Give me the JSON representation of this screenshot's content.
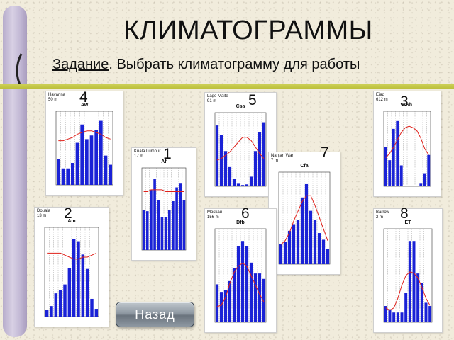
{
  "page": {
    "title": "КЛИМАТОГРАММЫ",
    "task_label": "Задание",
    "task_text": ". Выбрать климатограмму  для работы"
  },
  "back_button": {
    "label": "Назад"
  },
  "charts": [
    {
      "number": "4",
      "station": "Havanna",
      "elevation": "50 m",
      "climate_code": "Aw",
      "temp": [
        22,
        22,
        23,
        24,
        26,
        27,
        28,
        28,
        27,
        26,
        24,
        23
      ],
      "precip": [
        70,
        45,
        45,
        60,
        115,
        165,
        125,
        135,
        150,
        175,
        80,
        55
      ]
    },
    {
      "number": "5",
      "station": "Lago Maite",
      "elevation": "91 m",
      "climate_code": "Csa",
      "temp": [
        11,
        12,
        14,
        16,
        19,
        22,
        25,
        25,
        23,
        19,
        15,
        12
      ],
      "precip": [
        95,
        80,
        55,
        30,
        12,
        4,
        2,
        3,
        15,
        55,
        85,
        100
      ]
    },
    {
      "number": "3",
      "station": "Eiad",
      "elevation": "612 m",
      "climate_code": "BSh",
      "temp": [
        14,
        17,
        21,
        26,
        31,
        34,
        35,
        34,
        32,
        27,
        20,
        16
      ],
      "precip": [
        15,
        10,
        22,
        25,
        8,
        0,
        0,
        0,
        0,
        1,
        5,
        12
      ]
    },
    {
      "number": "1",
      "station": "Kuala Lumpur",
      "elevation": "17 m",
      "climate_code": "Af",
      "temp": [
        27,
        27,
        28,
        28,
        28,
        28,
        27,
        27,
        27,
        27,
        27,
        27
      ],
      "precip": [
        160,
        155,
        240,
        285,
        200,
        130,
        130,
        160,
        195,
        250,
        265,
        200
      ]
    },
    {
      "number": "7",
      "station": "Nanjan War",
      "elevation": "7 m",
      "climate_code": "Cfa",
      "temp": [
        3,
        5,
        9,
        15,
        20,
        25,
        28,
        28,
        23,
        17,
        11,
        5
      ],
      "precip": [
        45,
        50,
        75,
        90,
        100,
        150,
        180,
        120,
        100,
        70,
        55,
        35
      ]
    },
    {
      "number": "2",
      "station": "Douala",
      "elevation": "13 m",
      "climate_code": "Am",
      "temp": [
        27,
        27,
        27,
        27,
        26,
        25,
        24,
        24,
        25,
        25,
        26,
        27
      ],
      "precip": [
        60,
        95,
        210,
        240,
        290,
        440,
        700,
        680,
        560,
        430,
        160,
        70
      ]
    },
    {
      "number": "6",
      "station": "Moskau",
      "elevation": "156 m",
      "climate_code": "Dfb",
      "temp": [
        -10,
        -9,
        -4,
        5,
        12,
        16,
        18,
        16,
        10,
        4,
        -2,
        -7
      ],
      "precip": [
        35,
        28,
        30,
        38,
        50,
        70,
        75,
        70,
        55,
        45,
        45,
        40
      ]
    },
    {
      "number": "8",
      "station": "Barrow",
      "elevation": "2 m",
      "climate_code": "ET",
      "temp": [
        -26,
        -28,
        -26,
        -18,
        -7,
        1,
        4,
        3,
        -1,
        -9,
        -18,
        -24
      ],
      "precip": [
        5,
        4,
        3,
        3,
        3,
        9,
        25,
        25,
        15,
        12,
        6,
        5
      ]
    }
  ]
}
